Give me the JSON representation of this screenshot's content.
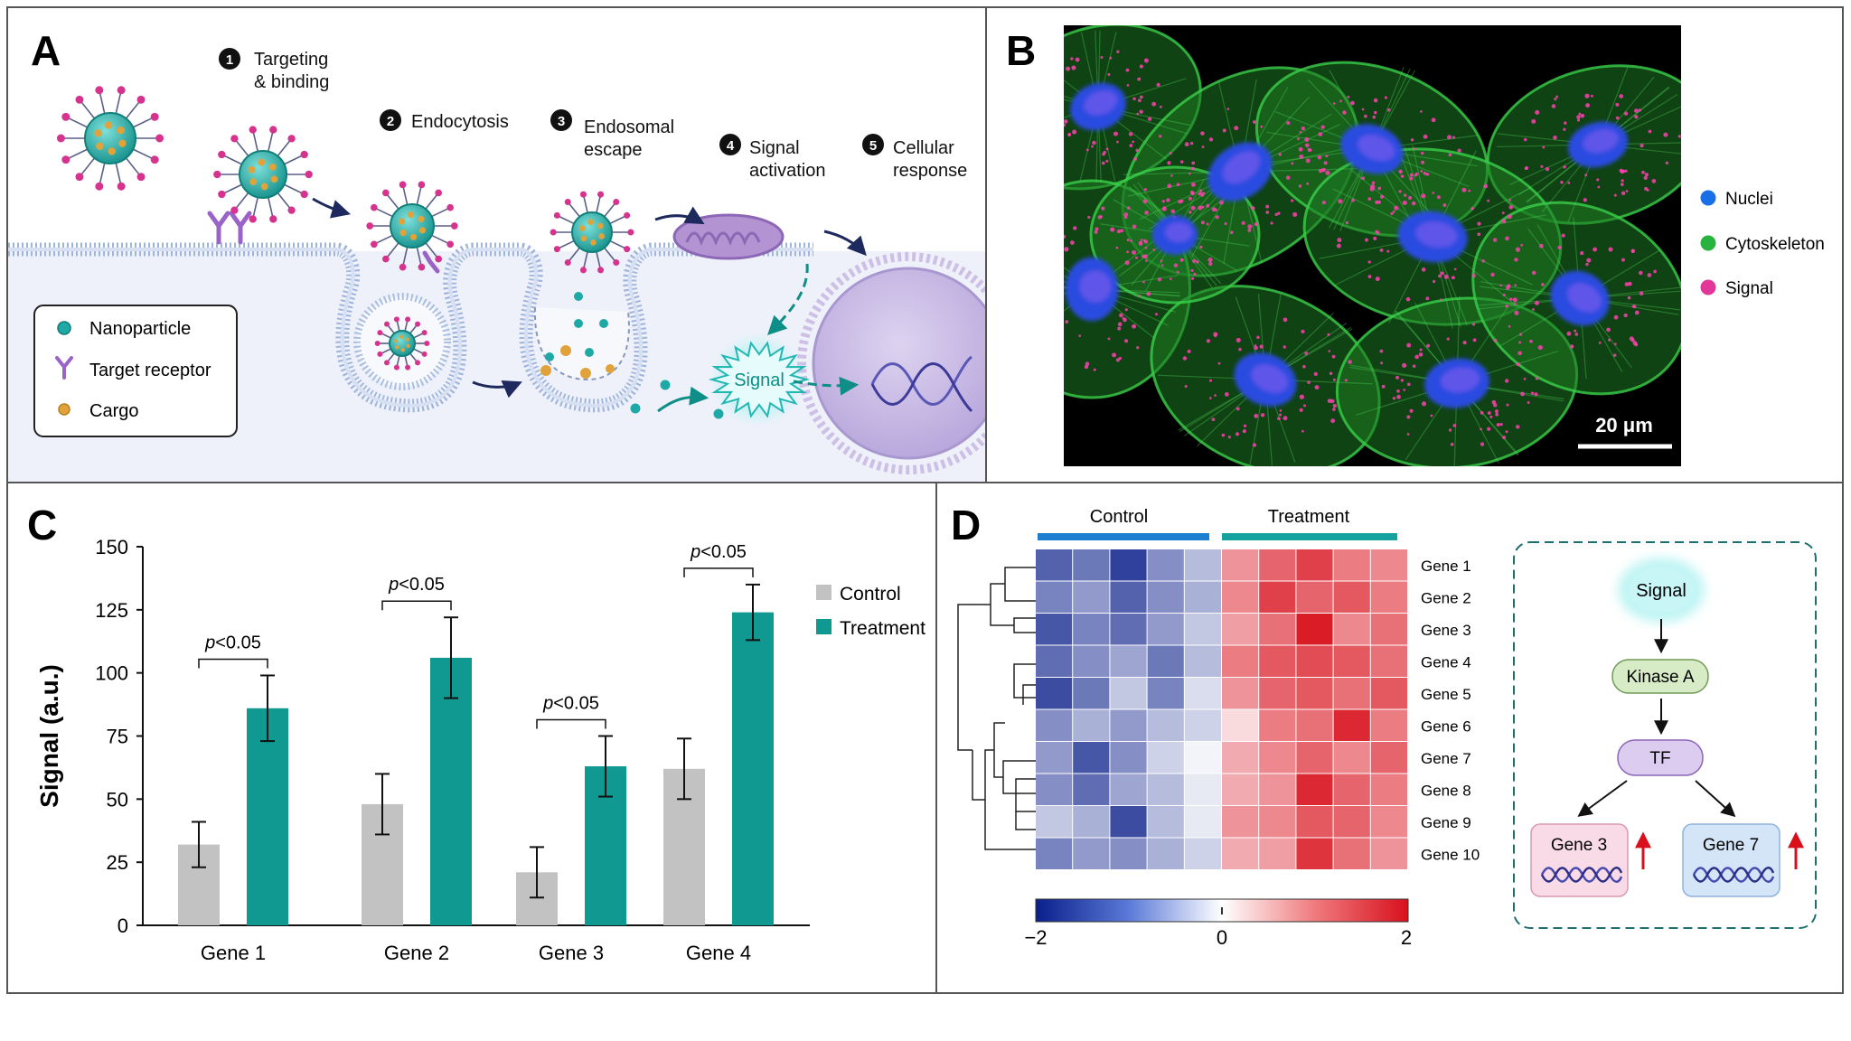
{
  "panels": {
    "a": {
      "letter": "A",
      "steps": [
        {
          "num": "1",
          "lines": [
            "Targeting",
            "& binding"
          ]
        },
        {
          "num": "2",
          "lines": [
            "Endocytosis"
          ]
        },
        {
          "num": "3",
          "lines": [
            "Endosomal",
            "escape"
          ]
        },
        {
          "num": "4",
          "lines": [
            "Signal",
            "activation"
          ]
        },
        {
          "num": "5",
          "lines": [
            "Cellular",
            "response"
          ]
        }
      ],
      "legend": [
        "Nanoparticle",
        "Target receptor",
        "Cargo"
      ],
      "signal_label": "Signal",
      "colors": {
        "membrane": "#a9bfe0",
        "nanoparticle": "#1fa9a6",
        "ligand": "#d6338f",
        "receptor": "#9a63c7",
        "cargo": "#e0a33a",
        "mitochondrion": "#b493d3",
        "nucleus": "#c7b9e4",
        "arrow_dark": "#1e2a5e",
        "arrow_teal": "#0f8e88"
      }
    },
    "b": {
      "letter": "B",
      "legend": [
        {
          "label": "Nuclei",
          "color": "#1a6ee8"
        },
        {
          "label": "Cytoskeleton",
          "color": "#27b33d"
        },
        {
          "label": "Signal",
          "color": "#e2369a"
        }
      ],
      "scale_bar": "20 μm"
    },
    "c": {
      "letter": "C",
      "legend": [
        {
          "label": "Control",
          "color": "#c2c2c2"
        },
        {
          "label": "Treatment",
          "color": "#0f9991"
        }
      ],
      "significance": [
        "p<0.05",
        "p<0.05",
        "p<0.05",
        "p<0.05"
      ]
    },
    "d": {
      "letter": "D",
      "groups": [
        {
          "label": "Control",
          "color": "#1d7fd0"
        },
        {
          "label": "Treatment",
          "color": "#16a3a0"
        }
      ],
      "colorbar_ticks": [
        "−2",
        "0",
        "2"
      ],
      "pathway": {
        "signal": "Signal",
        "kinase": "Kinase A",
        "tf": "TF",
        "targets": [
          "Gene 3",
          "Gene 7"
        ]
      }
    }
  },
  "chart_data": [
    {
      "type": "bar",
      "panel": "C",
      "categories": [
        "Gene 1",
        "Gene 2",
        "Gene 3",
        "Gene 4"
      ],
      "series": [
        {
          "name": "Control",
          "values": [
            32,
            48,
            21,
            62
          ],
          "errors": [
            9,
            12,
            10,
            12
          ]
        },
        {
          "name": "Treatment",
          "values": [
            86,
            106,
            63,
            124
          ],
          "errors": [
            13,
            16,
            12,
            11
          ]
        }
      ],
      "ylabel": "Signal (a.u.)",
      "ylim": [
        0,
        150
      ],
      "yticks": [
        0,
        25,
        50,
        75,
        100,
        125,
        150
      ],
      "legend": "top-right",
      "grid": false
    },
    {
      "type": "heatmap",
      "panel": "D",
      "rows": [
        "Gene 1",
        "Gene 2",
        "Gene 3",
        "Gene 4",
        "Gene 5",
        "Gene 6",
        "Gene 7",
        "Gene 8",
        "Gene 9",
        "Gene 10"
      ],
      "columns": [
        "Control",
        "Control",
        "Control",
        "Control",
        "Control",
        "Treatment",
        "Treatment",
        "Treatment",
        "Treatment",
        "Treatment"
      ],
      "values": [
        [
          -1.4,
          -1.2,
          -1.7,
          -1.0,
          -0.6,
          0.9,
          1.3,
          1.6,
          1.1,
          1.0
        ],
        [
          -1.1,
          -0.9,
          -1.4,
          -1.0,
          -0.7,
          1.0,
          1.6,
          1.3,
          1.4,
          1.1
        ],
        [
          -1.5,
          -1.1,
          -1.3,
          -0.9,
          -0.5,
          0.8,
          1.2,
          1.9,
          1.0,
          1.2
        ],
        [
          -1.3,
          -1.0,
          -0.8,
          -1.2,
          -0.6,
          1.1,
          1.4,
          1.5,
          1.4,
          1.2
        ],
        [
          -1.6,
          -1.2,
          -0.5,
          -1.1,
          -0.3,
          0.9,
          1.3,
          1.4,
          1.2,
          1.4
        ],
        [
          -1.0,
          -0.7,
          -0.9,
          -0.6,
          -0.4,
          0.3,
          1.1,
          1.2,
          1.8,
          1.1
        ],
        [
          -0.9,
          -1.5,
          -1.0,
          -0.4,
          -0.1,
          0.7,
          1.0,
          1.3,
          1.0,
          1.3
        ],
        [
          -1.0,
          -1.3,
          -0.8,
          -0.6,
          -0.2,
          0.7,
          0.9,
          1.8,
          1.3,
          1.1
        ],
        [
          -0.5,
          -0.7,
          -1.6,
          -0.6,
          -0.2,
          0.9,
          1.0,
          1.4,
          1.3,
          1.0
        ],
        [
          -1.1,
          -0.9,
          -1.0,
          -0.7,
          -0.4,
          0.7,
          0.8,
          1.7,
          1.2,
          0.9
        ]
      ],
      "colorscale": {
        "min": -2,
        "mid": 0,
        "max": 2,
        "low": "#0a1f8a",
        "center": "#ffffff",
        "high": "#d8101c"
      },
      "dendrogram": "rows-left"
    }
  ]
}
